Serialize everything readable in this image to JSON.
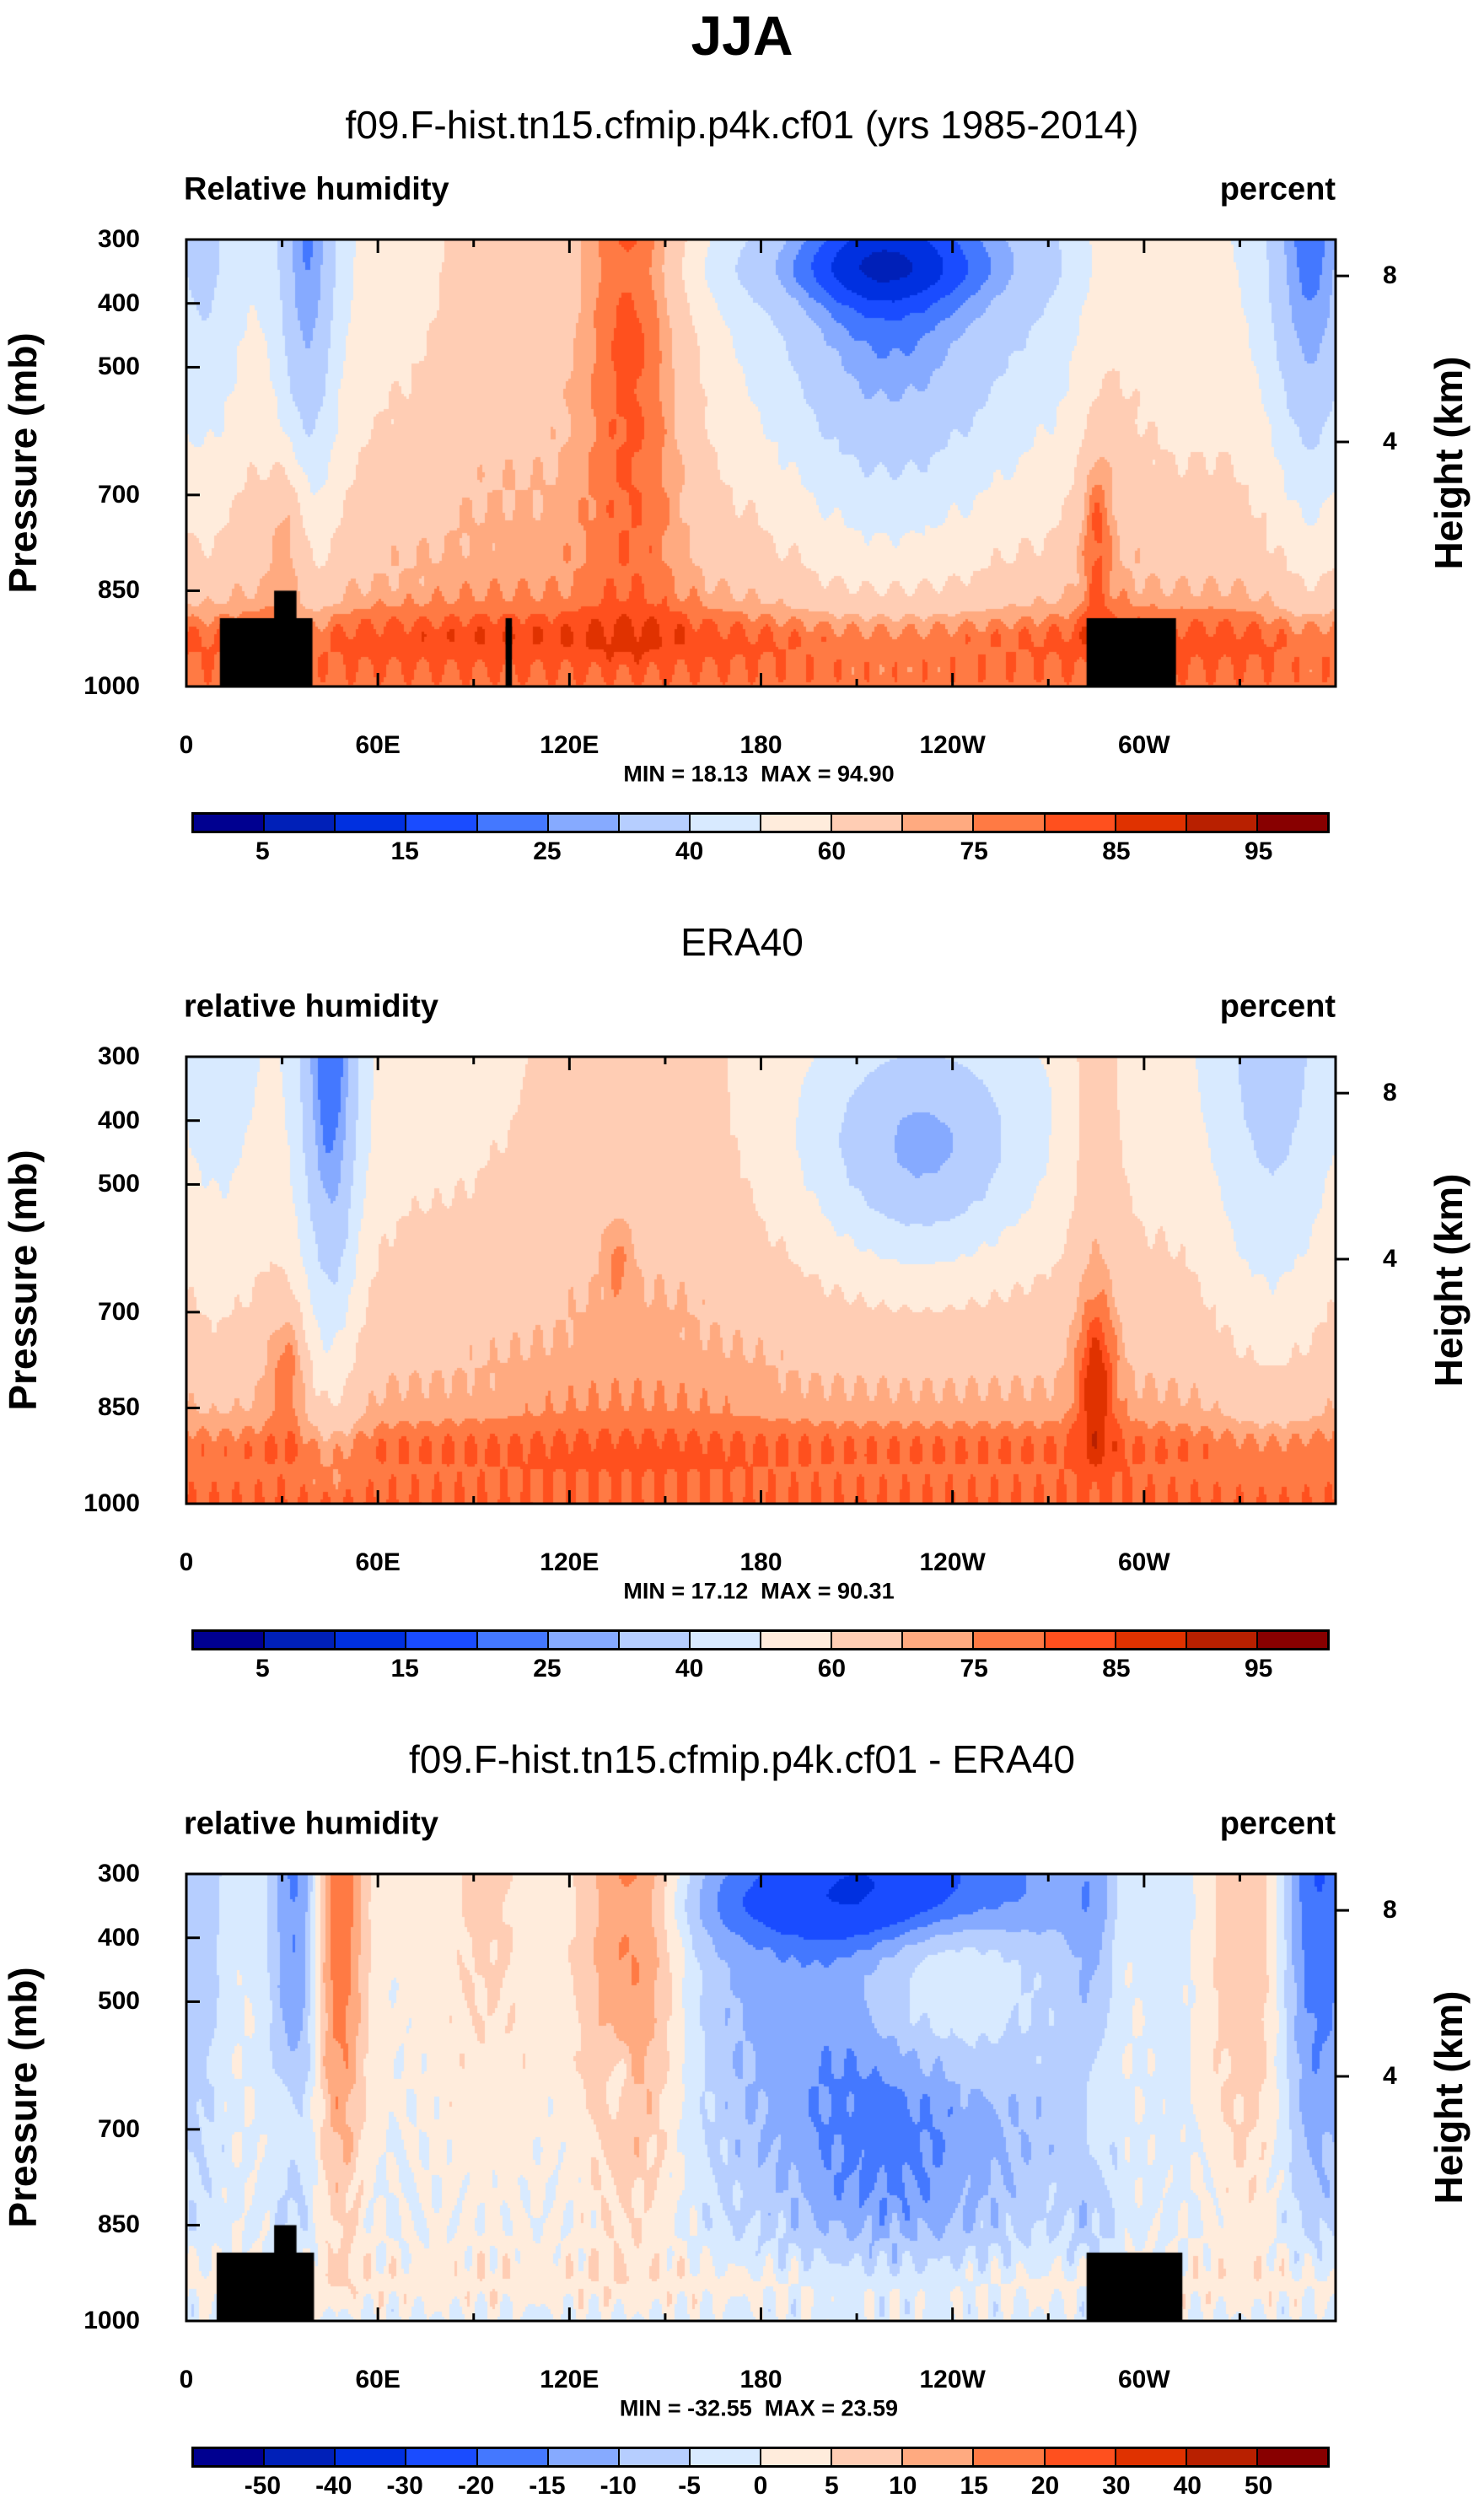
{
  "header": {
    "title": "JJA"
  },
  "axes": {
    "ylabel": "Pressure (mb)",
    "ylabel_right": "Height (km)",
    "xticks": [
      {
        "lon": 0,
        "label": "0"
      },
      {
        "lon": 60,
        "label": "60E"
      },
      {
        "lon": 120,
        "label": "120E"
      },
      {
        "lon": 180,
        "label": "180"
      },
      {
        "lon": 240,
        "label": "120W"
      },
      {
        "lon": 300,
        "label": "60W"
      }
    ],
    "yticks": [
      {
        "p": 300,
        "label": "300"
      },
      {
        "p": 400,
        "label": "400"
      },
      {
        "p": 500,
        "label": "500"
      },
      {
        "p": 700,
        "label": "700"
      },
      {
        "p": 850,
        "label": "850"
      },
      {
        "p": 1000,
        "label": "1000"
      }
    ],
    "height_ticks": [
      {
        "p": 357,
        "label": "8"
      },
      {
        "p": 617,
        "label": "4"
      }
    ],
    "xlim": [
      0,
      360
    ],
    "ylim": [
      1000,
      300
    ]
  },
  "colors": [
    "#000090",
    "#0020b8",
    "#0030e0",
    "#1a4cff",
    "#4478ff",
    "#86aaff",
    "#b6ceff",
    "#d8eaff",
    "#ffecdc",
    "#ffcdb4",
    "#ffaa80",
    "#ff7a44",
    "#ff501e",
    "#e03200",
    "#b82000",
    "#880000"
  ],
  "chart_data": [
    {
      "type": "heatmap",
      "title": "f09.F-hist.tn15.cfmip.p4k.cf01 (yrs 1985-2014)",
      "left_label": "Relative humidity",
      "right_label": "percent",
      "minmax": "MIN = 18.13  MAX = 94.90",
      "min": 18.13,
      "max": 94.9,
      "levels": [
        5,
        10,
        15,
        20,
        25,
        30,
        40,
        50,
        60,
        70,
        75,
        80,
        85,
        90,
        95
      ],
      "colorbar_labels": [
        "5",
        "15",
        "25",
        "40",
        "60",
        "75",
        "85",
        "95"
      ]
    },
    {
      "type": "heatmap",
      "title": "ERA40",
      "left_label": "relative humidity",
      "right_label": "percent",
      "minmax": "MIN = 17.12  MAX = 90.31",
      "min": 17.12,
      "max": 90.31,
      "levels": [
        5,
        10,
        15,
        20,
        25,
        30,
        40,
        50,
        60,
        70,
        75,
        80,
        85,
        90,
        95
      ],
      "colorbar_labels": [
        "5",
        "15",
        "25",
        "40",
        "60",
        "75",
        "85",
        "95"
      ]
    },
    {
      "type": "heatmap",
      "title": "f09.F-hist.tn15.cfmip.p4k.cf01 - ERA40",
      "left_label": "relative humidity",
      "right_label": "percent",
      "minmax": "MIN = -32.55  MAX = 23.59",
      "min": -32.55,
      "max": 23.59,
      "levels": [
        -50,
        -40,
        -30,
        -20,
        -15,
        -10,
        -5,
        0,
        5,
        10,
        15,
        20,
        30,
        40,
        50
      ],
      "colorbar_labels": [
        "-50",
        "-40",
        "-30",
        "-20",
        "-15",
        "-10",
        "-5",
        "0",
        "5",
        "10",
        "15",
        "20",
        "30",
        "40",
        "50"
      ]
    }
  ]
}
